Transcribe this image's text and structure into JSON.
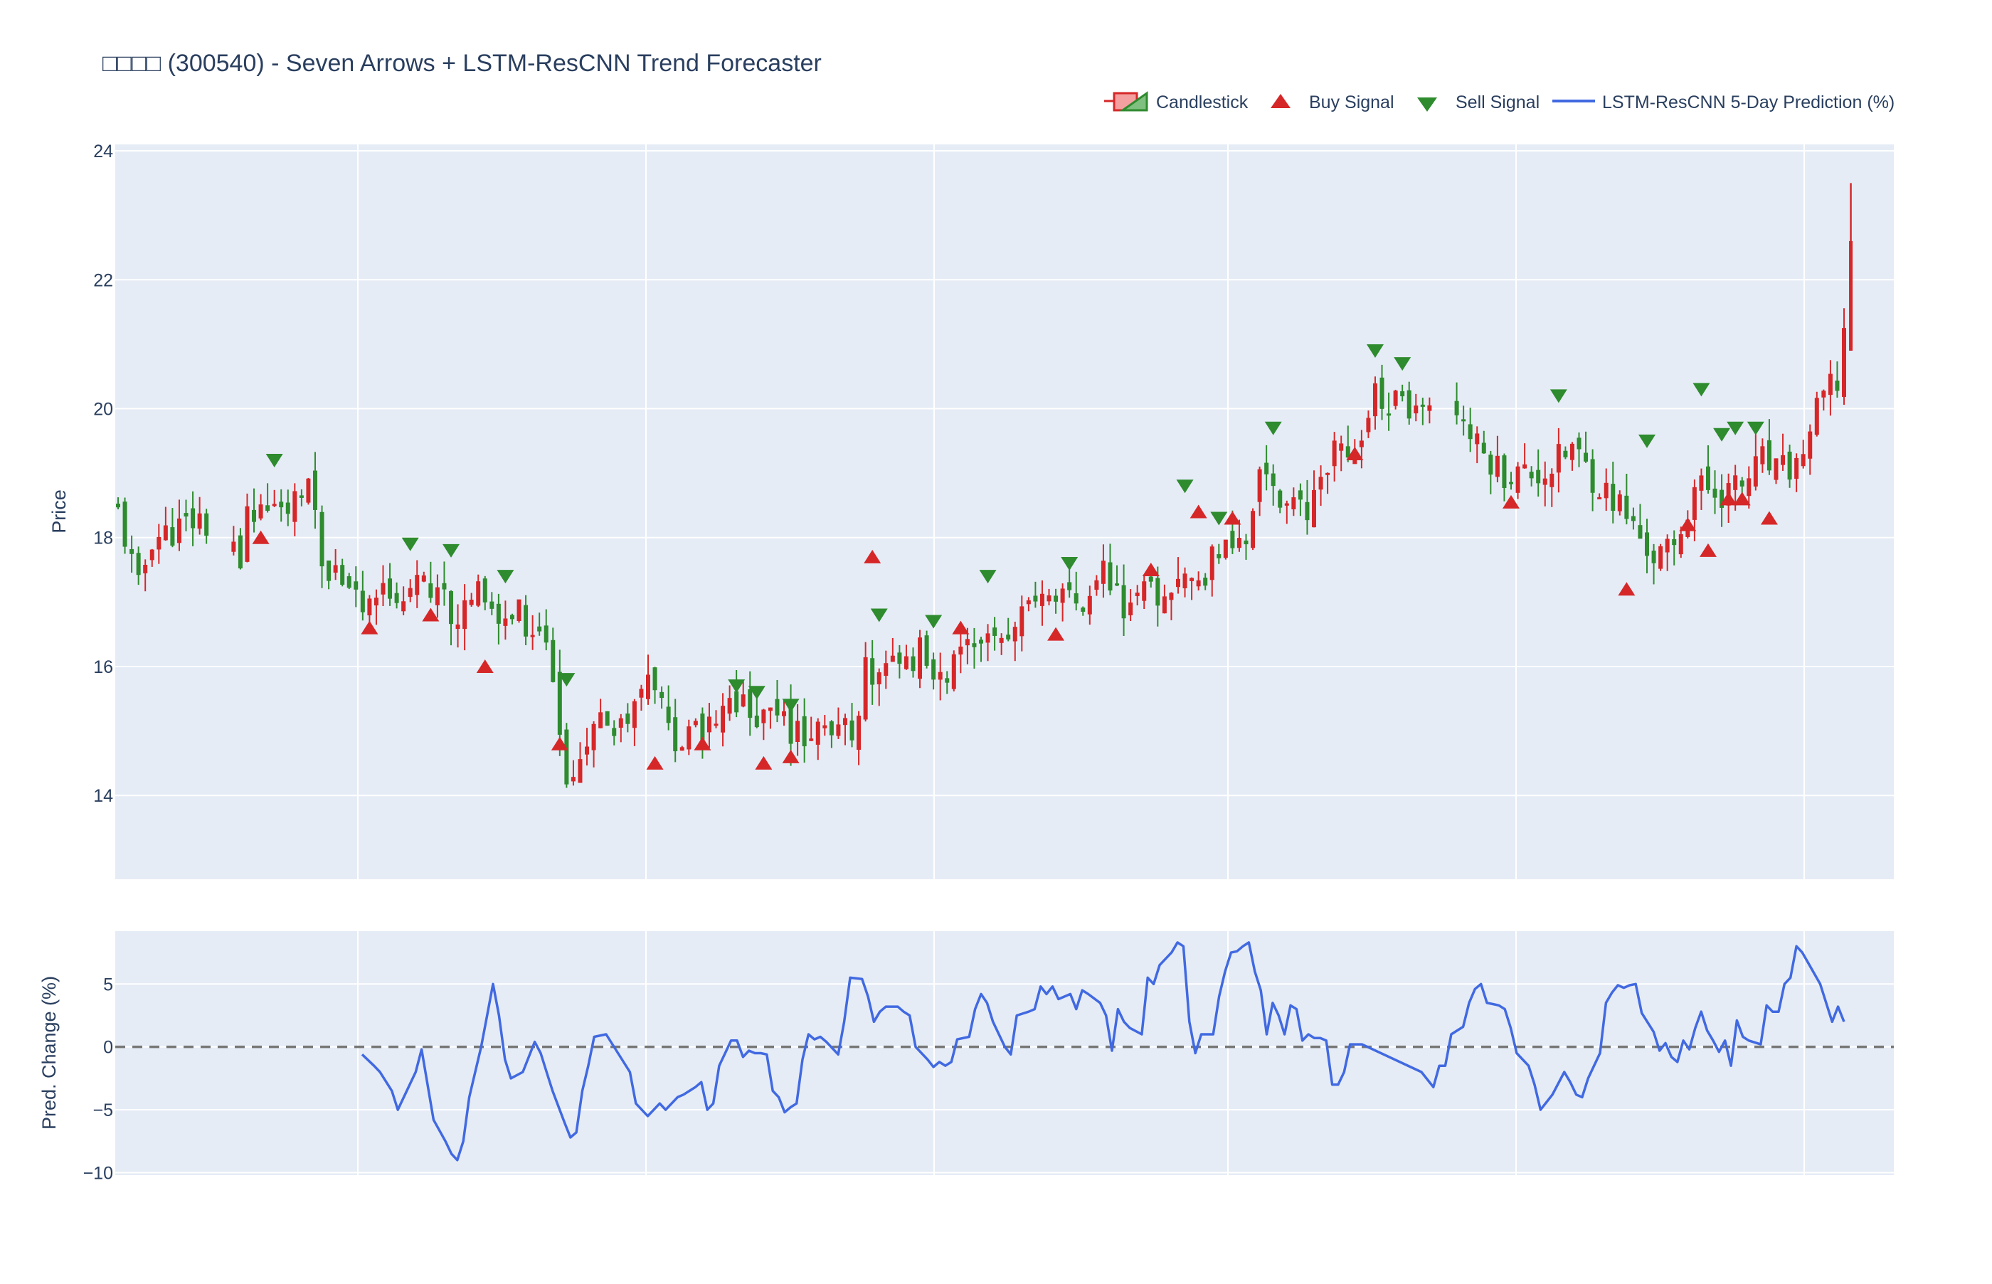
{
  "chart_data": {
    "type": "candlestick",
    "title": "□□□□ (300540) - Seven Arrows + LSTM-ResCNN Trend Forecaster",
    "legend": {
      "placement": "top-right",
      "entries": [
        "Candlestick",
        "Buy Signal",
        "Sell Signal",
        "LSTM-ResCNN 5-Day Prediction (%)"
      ]
    },
    "colors": {
      "up": "#d62728",
      "down": "#2e8b2e",
      "prediction": "#4169e1",
      "zero_line": "#777777",
      "plot_bg": "#e5ecf6",
      "grid": "#ffffff",
      "text": "#2a3f5f"
    },
    "x": {
      "range": [
        0,
        250
      ],
      "gridlines": [
        34,
        74,
        114,
        155,
        195,
        235
      ]
    },
    "price_panel": {
      "ylabel": "Price",
      "ylim": [
        12.7,
        24.1
      ],
      "yticks": [
        14,
        16,
        18,
        20,
        22,
        24
      ],
      "anchors": [
        [
          0,
          18.4
        ],
        [
          3,
          17.2
        ],
        [
          5,
          18.0
        ],
        [
          8,
          18.1
        ],
        [
          12,
          18.3
        ],
        [
          18,
          17.6
        ],
        [
          19,
          18.5
        ],
        [
          24,
          18.3
        ],
        [
          27,
          18.6
        ],
        [
          28,
          18.8
        ],
        [
          30,
          17.6
        ],
        [
          34,
          17.4
        ],
        [
          36,
          16.9
        ],
        [
          40,
          17.2
        ],
        [
          46,
          17.2
        ],
        [
          50,
          16.8
        ],
        [
          54,
          17.2
        ],
        [
          56,
          16.6
        ],
        [
          59,
          16.8
        ],
        [
          62,
          16.5
        ],
        [
          64,
          15.8
        ],
        [
          66,
          14.4
        ],
        [
          67,
          14.2
        ],
        [
          69,
          15.0
        ],
        [
          72,
          15.1
        ],
        [
          75,
          15.3
        ],
        [
          78,
          15.8
        ],
        [
          80,
          15.3
        ],
        [
          82,
          14.8
        ],
        [
          87,
          15.0
        ],
        [
          90,
          15.5
        ],
        [
          95,
          15.2
        ],
        [
          100,
          15.0
        ],
        [
          104,
          14.9
        ],
        [
          108,
          15.0
        ],
        [
          110,
          15.9
        ],
        [
          114,
          16.0
        ],
        [
          118,
          16.2
        ],
        [
          120,
          15.8
        ],
        [
          125,
          16.2
        ],
        [
          130,
          16.5
        ],
        [
          134,
          16.8
        ],
        [
          138,
          17.1
        ],
        [
          142,
          16.8
        ],
        [
          145,
          17.5
        ],
        [
          148,
          17.0
        ],
        [
          152,
          17.1
        ],
        [
          156,
          17.2
        ],
        [
          160,
          17.5
        ],
        [
          163,
          17.9
        ],
        [
          166,
          18.0
        ],
        [
          168,
          19.0
        ],
        [
          172,
          18.5
        ],
        [
          175,
          18.3
        ],
        [
          178,
          19.2
        ],
        [
          182,
          19.5
        ],
        [
          185,
          20.2
        ],
        [
          189,
          20.0
        ],
        [
          191,
          19.8
        ],
        [
          192,
          19.9
        ],
        [
          197,
          20.0
        ],
        [
          200,
          19.4
        ],
        [
          204,
          19.0
        ],
        [
          210,
          19.0
        ],
        [
          214,
          19.4
        ],
        [
          218,
          18.8
        ],
        [
          221,
          18.5
        ],
        [
          224,
          18.0
        ],
        [
          226,
          17.7
        ],
        [
          229,
          17.8
        ],
        [
          232,
          18.8
        ],
        [
          236,
          18.7
        ],
        [
          239,
          18.8
        ],
        [
          242,
          19.2
        ],
        [
          244,
          19.0
        ],
        [
          247,
          19.1
        ],
        [
          251,
          20.2
        ],
        [
          253,
          20.4
        ],
        [
          254,
          21.2
        ]
      ],
      "gaps": [
        [
          13,
          17
        ],
        [
          19,
          20
        ],
        [
          193,
          197
        ]
      ],
      "seed": 11
    },
    "buy_signals": [
      [
        21,
        18.0
      ],
      [
        37,
        16.6
      ],
      [
        46,
        16.8
      ],
      [
        54,
        16.0
      ],
      [
        65,
        14.8
      ],
      [
        79,
        14.5
      ],
      [
        86,
        14.8
      ],
      [
        95,
        14.5
      ],
      [
        99,
        14.6
      ],
      [
        111,
        17.7
      ],
      [
        124,
        16.6
      ],
      [
        138,
        16.5
      ],
      [
        152,
        17.5
      ],
      [
        159,
        18.4
      ],
      [
        164,
        18.3
      ],
      [
        182,
        19.3
      ],
      [
        205,
        18.55
      ],
      [
        222,
        17.2
      ],
      [
        231,
        18.2
      ],
      [
        234,
        17.8
      ],
      [
        237,
        18.6
      ],
      [
        239,
        18.6
      ],
      [
        243,
        18.3
      ]
    ],
    "sell_signals": [
      [
        23,
        19.2
      ],
      [
        43,
        17.9
      ],
      [
        49,
        17.8
      ],
      [
        57,
        17.4
      ],
      [
        66,
        15.8
      ],
      [
        91,
        15.7
      ],
      [
        94,
        15.6
      ],
      [
        99,
        15.4
      ],
      [
        112,
        16.8
      ],
      [
        120,
        16.7
      ],
      [
        128,
        17.4
      ],
      [
        140,
        17.6
      ],
      [
        157,
        18.8
      ],
      [
        162,
        18.3
      ],
      [
        170,
        19.7
      ],
      [
        185,
        20.9
      ],
      [
        189,
        20.7
      ],
      [
        212,
        20.2
      ],
      [
        225,
        19.5
      ],
      [
        233,
        20.3
      ],
      [
        236,
        19.6
      ],
      [
        238,
        19.7
      ],
      [
        241,
        19.7
      ]
    ],
    "prediction_panel": {
      "ylabel": "Pred. Change (%)",
      "ylim": [
        -10.2,
        9.2
      ],
      "yticks": [
        -10,
        -5,
        0,
        5
      ],
      "zero_line": 0,
      "values": [
        [
          41,
          -0.6
        ],
        [
          43,
          -1.5
        ],
        [
          44,
          -2
        ],
        [
          46,
          -3.5
        ],
        [
          47,
          -5
        ],
        [
          49,
          -3
        ],
        [
          50,
          -2
        ],
        [
          51,
          -0.2
        ],
        [
          52,
          -3
        ],
        [
          53,
          -5.8
        ],
        [
          55,
          -7.5
        ],
        [
          56,
          -8.5
        ],
        [
          57,
          -9
        ],
        [
          58,
          -7.5
        ],
        [
          59,
          -4
        ],
        [
          61,
          0
        ],
        [
          62,
          2.5
        ],
        [
          63,
          5
        ],
        [
          64,
          2.5
        ],
        [
          65,
          -1
        ],
        [
          66,
          -2.5
        ],
        [
          68,
          -2
        ],
        [
          70,
          0.4
        ],
        [
          71,
          -0.5
        ],
        [
          72,
          -2
        ],
        [
          73,
          -3.5
        ],
        [
          75,
          -6
        ],
        [
          76,
          -7.2
        ],
        [
          77,
          -6.8
        ],
        [
          78,
          -3.5
        ],
        [
          79,
          -1.5
        ],
        [
          80,
          0.8
        ],
        [
          82,
          1
        ],
        [
          84,
          -0.5
        ],
        [
          86,
          -2
        ],
        [
          87,
          -4.5
        ],
        [
          89,
          -5.5
        ],
        [
          91,
          -4.5
        ],
        [
          92,
          -5
        ],
        [
          94,
          -4
        ],
        [
          95,
          -3.8
        ],
        [
          96,
          -3.5
        ],
        [
          97,
          -3.2
        ],
        [
          98,
          -2.8
        ],
        [
          99,
          -5
        ],
        [
          100,
          -4.5
        ],
        [
          101,
          -1.5
        ],
        [
          102,
          -0.5
        ],
        [
          103,
          0.5
        ],
        [
          104,
          0.5
        ],
        [
          105,
          -0.8
        ],
        [
          106,
          -0.3
        ],
        [
          107,
          -0.5
        ],
        [
          108,
          -0.5
        ],
        [
          109,
          -0.6
        ],
        [
          110,
          -3.5
        ],
        [
          111,
          -4
        ],
        [
          112,
          -5.2
        ],
        [
          113,
          -4.8
        ],
        [
          114,
          -4.5
        ],
        [
          115,
          -1
        ],
        [
          116,
          1
        ],
        [
          117,
          0.6
        ],
        [
          118,
          0.8
        ],
        [
          119,
          0.4
        ],
        [
          121,
          -0.6
        ],
        [
          122,
          2
        ],
        [
          123,
          5.5
        ],
        [
          125,
          5.4
        ],
        [
          126,
          4
        ],
        [
          127,
          2
        ],
        [
          128,
          2.8
        ],
        [
          129,
          3.2
        ],
        [
          131,
          3.2
        ],
        [
          132,
          2.8
        ],
        [
          133,
          2.5
        ],
        [
          134,
          0
        ],
        [
          136,
          -1
        ],
        [
          137,
          -1.6
        ],
        [
          138,
          -1.2
        ],
        [
          139,
          -1.5
        ],
        [
          140,
          -1.2
        ],
        [
          141,
          0.6
        ],
        [
          143,
          0.8
        ],
        [
          144,
          3
        ],
        [
          145,
          4.2
        ],
        [
          146,
          3.5
        ],
        [
          147,
          2
        ],
        [
          149,
          0
        ],
        [
          150,
          -0.6
        ],
        [
          151,
          2.5
        ],
        [
          153,
          2.8
        ],
        [
          154,
          3
        ],
        [
          155,
          4.8
        ],
        [
          156,
          4.2
        ],
        [
          157,
          4.8
        ],
        [
          158,
          3.8
        ],
        [
          160,
          4.2
        ],
        [
          161,
          3
        ],
        [
          162,
          4.5
        ],
        [
          163,
          4.2
        ],
        [
          165,
          3.5
        ],
        [
          166,
          2.5
        ],
        [
          167,
          -0.3
        ],
        [
          168,
          3
        ],
        [
          169,
          2
        ],
        [
          170,
          1.5
        ],
        [
          172,
          1
        ],
        [
          173,
          5.5
        ],
        [
          174,
          5
        ],
        [
          175,
          6.5
        ],
        [
          177,
          7.5
        ],
        [
          178,
          8.3
        ],
        [
          179,
          8
        ],
        [
          180,
          2
        ],
        [
          181,
          -0.5
        ],
        [
          182,
          1
        ],
        [
          183,
          1
        ],
        [
          184,
          1
        ],
        [
          185,
          4
        ],
        [
          186,
          6
        ],
        [
          187,
          7.5
        ],
        [
          188,
          7.6
        ],
        [
          189,
          8
        ],
        [
          190,
          8.3
        ],
        [
          191,
          6
        ],
        [
          192,
          4.5
        ],
        [
          193,
          1
        ],
        [
          194,
          3.5
        ],
        [
          195,
          2.5
        ],
        [
          196,
          1
        ],
        [
          197,
          3.3
        ],
        [
          198,
          3
        ],
        [
          199,
          0.5
        ],
        [
          200,
          1
        ],
        [
          201,
          0.7
        ],
        [
          202,
          0.7
        ],
        [
          203,
          0.5
        ],
        [
          204,
          -3
        ],
        [
          205,
          -3
        ],
        [
          206,
          -2
        ],
        [
          207,
          0.2
        ],
        [
          209,
          0.2
        ],
        [
          219,
          -2
        ],
        [
          221,
          -3.2
        ],
        [
          222,
          -1.5
        ],
        [
          223,
          -1.5
        ],
        [
          224,
          1
        ],
        [
          226,
          1.6
        ],
        [
          227,
          3.5
        ],
        [
          228,
          4.6
        ],
        [
          229,
          5
        ],
        [
          230,
          3.5
        ],
        [
          231,
          3.4
        ],
        [
          232,
          3.3
        ],
        [
          233,
          3
        ],
        [
          234,
          1.5
        ],
        [
          235,
          -0.5
        ],
        [
          237,
          -1.5
        ],
        [
          238,
          -3
        ],
        [
          239,
          -5
        ],
        [
          241,
          -3.8
        ],
        [
          243,
          -2
        ],
        [
          244,
          -2.8
        ],
        [
          245,
          -3.8
        ],
        [
          246,
          -4
        ],
        [
          247,
          -2.5
        ],
        [
          248,
          -1.5
        ],
        [
          249,
          -0.5
        ],
        [
          250,
          3.5
        ],
        [
          251,
          4.3
        ],
        [
          252,
          4.9
        ],
        [
          253,
          4.7
        ],
        [
          254,
          4.9
        ],
        [
          255,
          5
        ],
        [
          256,
          2.7
        ],
        [
          258,
          1.2
        ],
        [
          259,
          -0.3
        ],
        [
          260,
          0.3
        ],
        [
          261,
          -0.8
        ],
        [
          262,
          -1.2
        ],
        [
          263,
          0.5
        ],
        [
          264,
          -0.2
        ],
        [
          265,
          1.5
        ],
        [
          266,
          2.8
        ],
        [
          267,
          1.3
        ],
        [
          268,
          0.5
        ],
        [
          269,
          -0.4
        ],
        [
          270,
          0.5
        ],
        [
          271,
          -1.5
        ],
        [
          272,
          2.1
        ],
        [
          273,
          0.8
        ],
        [
          274,
          0.5
        ],
        [
          276,
          0.2
        ],
        [
          277,
          3.3
        ],
        [
          278,
          2.8
        ],
        [
          279,
          2.8
        ],
        [
          280,
          5
        ],
        [
          281,
          5.5
        ],
        [
          282,
          8
        ],
        [
          283,
          7.5
        ],
        [
          286,
          5
        ],
        [
          287,
          3.5
        ],
        [
          288,
          2
        ],
        [
          289,
          3.2
        ],
        [
          290,
          2
        ]
      ],
      "x_to_price_index_offset": 0
    }
  }
}
